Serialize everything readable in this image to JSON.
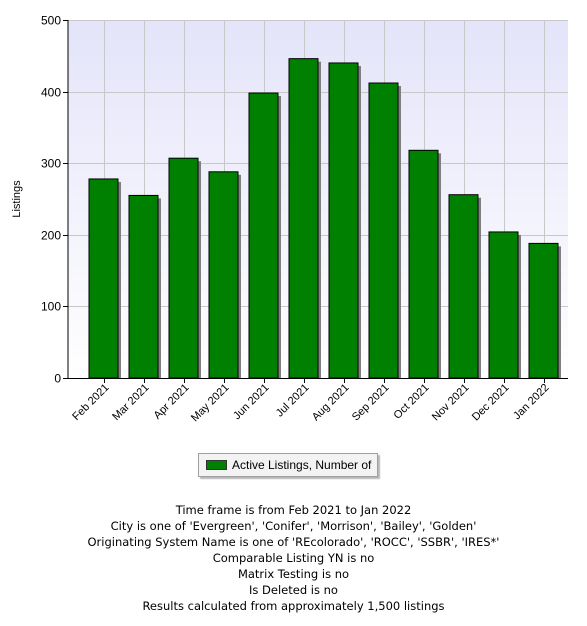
{
  "chart_data": {
    "type": "bar",
    "title": "",
    "xlabel": "",
    "ylabel": "Listings",
    "categories": [
      "Feb 2021",
      "Mar 2021",
      "Apr 2021",
      "May 2021",
      "Jun 2021",
      "Jul 2021",
      "Aug 2021",
      "Sep 2021",
      "Oct 2021",
      "Nov 2021",
      "Dec 2021",
      "Jan 2022"
    ],
    "series": [
      {
        "name": "Active Listings, Number of",
        "values": [
          278,
          255,
          307,
          288,
          398,
          446,
          440,
          412,
          318,
          256,
          204,
          188
        ]
      }
    ],
    "ylim": [
      0,
      500
    ],
    "yticks": [
      "0",
      "100",
      "200",
      "300",
      "400",
      "500"
    ],
    "grid": true,
    "legend": "bottom",
    "colors": {
      "bar": "#008000",
      "plot_bg_top": "#e6e6fa",
      "plot_bg_bottom": "#ffffff"
    }
  },
  "notes": [
    "Time frame is from Feb 2021 to Jan 2022",
    "City is one of 'Evergreen', 'Conifer', 'Morrison', 'Bailey', 'Golden'",
    "Originating System Name is one of 'REcolorado', 'ROCC', 'SSBR', 'IRES*'",
    "Comparable Listing YN is no",
    "Matrix Testing is no",
    "Is Deleted is no",
    "Results calculated from approximately 1,500 listings"
  ]
}
